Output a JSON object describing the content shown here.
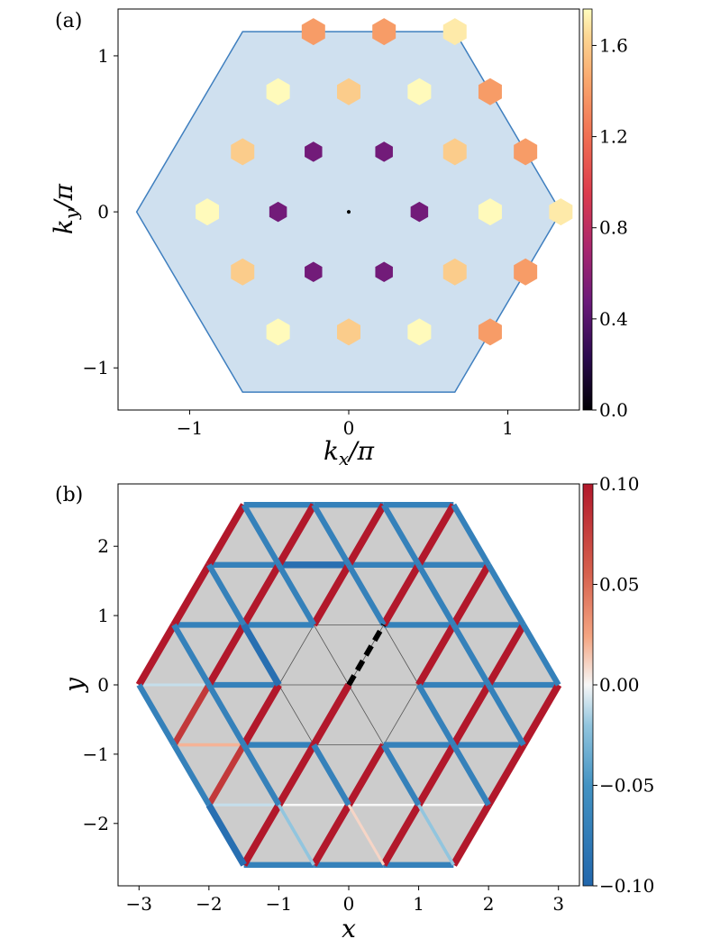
{
  "chart_data": [
    {
      "panel_label": "(a)",
      "type": "scatter",
      "xlabel": "kx/π",
      "ylabel": "ky/π",
      "xlim": [
        -1.45,
        1.45
      ],
      "ylim": [
        -1.27,
        1.3
      ],
      "xticks": [
        -1,
        0,
        1
      ],
      "yticks": [
        -1,
        0,
        1
      ],
      "colorbar": {
        "range": [
          0,
          1.76
        ],
        "ticks": [
          "0.0",
          "0.4",
          "0.8",
          "1.2",
          "1.6"
        ],
        "tick_values": [
          0,
          0.4,
          0.8,
          1.2,
          1.6
        ]
      },
      "brillouin_zone": [
        [
          1.333,
          0
        ],
        [
          0.667,
          1.155
        ],
        [
          -0.667,
          1.155
        ],
        [
          -1.333,
          0
        ],
        [
          -0.667,
          -1.155
        ],
        [
          0.667,
          -1.155
        ]
      ],
      "points": [
        {
          "x": 0,
          "y": 0,
          "value": 0,
          "size": 0.15
        },
        {
          "x": 0.444,
          "y": 0,
          "value": 0.5,
          "size": 0.75
        },
        {
          "x": -0.444,
          "y": 0,
          "value": 0.5,
          "size": 0.75
        },
        {
          "x": 0.222,
          "y": 0.385,
          "value": 0.5,
          "size": 0.75
        },
        {
          "x": -0.222,
          "y": 0.385,
          "value": 0.5,
          "size": 0.75
        },
        {
          "x": 0.222,
          "y": -0.385,
          "value": 0.5,
          "size": 0.75
        },
        {
          "x": -0.222,
          "y": -0.385,
          "value": 0.5,
          "size": 0.75
        },
        {
          "x": 0.889,
          "y": 0,
          "value": 1.75,
          "size": 1
        },
        {
          "x": -0.889,
          "y": 0,
          "value": 1.75,
          "size": 1
        },
        {
          "x": 0.444,
          "y": 0.77,
          "value": 1.75,
          "size": 1
        },
        {
          "x": -0.444,
          "y": 0.77,
          "value": 1.75,
          "size": 1
        },
        {
          "x": 0.444,
          "y": -0.77,
          "value": 1.75,
          "size": 1
        },
        {
          "x": -0.444,
          "y": -0.77,
          "value": 1.75,
          "size": 1
        },
        {
          "x": 0.667,
          "y": 0.385,
          "value": 1.6,
          "size": 1
        },
        {
          "x": -0.667,
          "y": 0.385,
          "value": 1.6,
          "size": 1
        },
        {
          "x": 0.667,
          "y": -0.385,
          "value": 1.6,
          "size": 1
        },
        {
          "x": -0.667,
          "y": -0.385,
          "value": 1.6,
          "size": 1
        },
        {
          "x": 0,
          "y": 0.77,
          "value": 1.6,
          "size": 1
        },
        {
          "x": 0,
          "y": -0.77,
          "value": 1.6,
          "size": 1
        },
        {
          "x": 1.333,
          "y": 0,
          "value": 1.7,
          "size": 1
        },
        {
          "x": 0.667,
          "y": 1.155,
          "value": 1.7,
          "size": 1
        },
        {
          "x": 1.111,
          "y": 0.385,
          "value": 1.4,
          "size": 1
        },
        {
          "x": 1.111,
          "y": -0.385,
          "value": 1.4,
          "size": 1
        },
        {
          "x": 0.889,
          "y": 0.77,
          "value": 1.4,
          "size": 1
        },
        {
          "x": 0.889,
          "y": -0.77,
          "value": 1.4,
          "size": 1
        },
        {
          "x": 0.222,
          "y": 1.155,
          "value": 1.4,
          "size": 1
        },
        {
          "x": -0.222,
          "y": 1.155,
          "value": 1.4,
          "size": 1
        }
      ]
    },
    {
      "panel_label": "(b)",
      "type": "lattice-bonds",
      "xlabel": "x",
      "ylabel": "y",
      "xlim": [
        -3.3,
        3.3
      ],
      "ylim": [
        -2.9,
        2.9
      ],
      "xticks": [
        -3,
        -2,
        -1,
        0,
        1,
        2,
        3
      ],
      "yticks": [
        -2,
        -1,
        0,
        1,
        2
      ],
      "colorbar": {
        "range": [
          -0.1,
          0.1
        ],
        "ticks": [
          "−0.10",
          "−0.05",
          "0.00",
          "0.05",
          "0.10"
        ],
        "tick_values": [
          -0.1,
          -0.05,
          0,
          0.05,
          0.1
        ]
      },
      "lattice_radius": 3,
      "removed_bond": [
        [
          0,
          0
        ],
        [
          0.5,
          0.866
        ]
      ],
      "removed_bond_style": "black dashed",
      "bond_rules": [
        {
          "direction": "diag-up",
          "rule": "hex-distance-from-center-gte-1",
          "value": 0.1
        },
        {
          "direction": "diag-down",
          "rule": "hex-distance-from-center-gte-1",
          "value": -0.07
        },
        {
          "direction": "horizontal",
          "rule": "hex-distance-from-center-gte-1",
          "value": -0.07
        },
        {
          "direction": "any",
          "rule": "inner-hexagon",
          "value": 0
        }
      ],
      "bond_overrides": [
        {
          "from": [
            -1,
            0.866
          ],
          "to": [
            -0.5,
            1.732
          ],
          "value": 0.1
        },
        {
          "from": [
            0.5,
            0.866
          ],
          "to": [
            1,
            1.732
          ],
          "value": 0.1
        },
        {
          "from": [
            -0.5,
            -0.866
          ],
          "to": [
            0,
            0
          ],
          "value": 0.1
        },
        {
          "from": [
            0,
            0
          ],
          "to": [
            0.5,
            -0.866
          ],
          "value": 0
        },
        {
          "from": [
            -2.5,
            -0.866
          ],
          "to": [
            -2,
            0
          ],
          "value": 0.08
        },
        {
          "from": [
            -2,
            -1.732
          ],
          "to": [
            -1.5,
            -0.866
          ],
          "value": 0.08
        },
        {
          "from": [
            -2.5,
            -0.866
          ],
          "to": [
            -1.5,
            -0.866
          ],
          "value": 0.02
        },
        {
          "from": [
            -3,
            0
          ],
          "to": [
            -2,
            0
          ],
          "value": -0.01
        },
        {
          "from": [
            -2,
            -1.732
          ],
          "to": [
            -1,
            -1.732
          ],
          "value": -0.01
        },
        {
          "from": [
            -1,
            -1.732
          ],
          "to": [
            -0.5,
            -2.598
          ],
          "value": -0.02
        },
        {
          "from": [
            0,
            -1.732
          ],
          "to": [
            0.5,
            -2.598
          ],
          "value": 0.01
        },
        {
          "from": [
            1,
            -1.732
          ],
          "to": [
            1.5,
            -2.598
          ],
          "value": -0.02
        },
        {
          "from": [
            -1,
            -1.732
          ],
          "to": [
            0,
            -1.732
          ],
          "value": 0
        },
        {
          "from": [
            0,
            -1.732
          ],
          "to": [
            1,
            -1.732
          ],
          "value": 0
        },
        {
          "from": [
            1,
            -1.732
          ],
          "to": [
            2,
            -1.732
          ],
          "value": 0
        },
        {
          "from": [
            -2,
            -1.732
          ],
          "to": [
            -1.5,
            -2.598
          ],
          "value": -0.09
        },
        {
          "from": [
            -1,
            1.732
          ],
          "to": [
            0,
            1.732
          ],
          "value": -0.09
        },
        {
          "from": [
            0,
            -0.866
          ],
          "to": [
            1,
            -0.866
          ],
          "value": -0.09
        },
        {
          "from": [
            1,
            0.866
          ],
          "to": [
            1.5,
            0
          ],
          "value": -0.09
        },
        {
          "from": [
            -1.5,
            0.866
          ],
          "to": [
            -1,
            0
          ],
          "value": -0.09
        }
      ]
    }
  ]
}
